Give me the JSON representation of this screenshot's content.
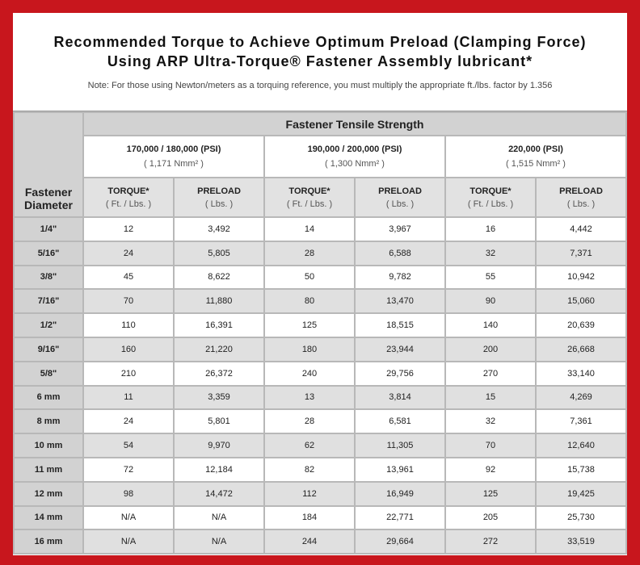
{
  "header": {
    "title": [
      "Recommended Torque to Achieve Optimum Preload (Clamping Force)",
      "Using ARP Ultra-Torque® Fastener Assembly lubricant*"
    ],
    "note": "Note: For those using Newton/meters as a torquing reference, you must multiply the appropriate ft./lbs. factor by 1.356"
  },
  "table": {
    "row_header": "Fastener Diameter",
    "group_header": "Fastener Tensile Strength",
    "groups": [
      {
        "label": "170,000 / 180,000 (PSI)",
        "sub": "( 1,171 Nmm² )"
      },
      {
        "label": "190,000 / 200,000 (PSI)",
        "sub": "( 1,300 Nmm² )"
      },
      {
        "label": "220,000 (PSI)",
        "sub": "( 1,515 Nmm² )"
      }
    ],
    "columns": [
      {
        "label": "TORQUE*",
        "unit": "( Ft. / Lbs. )"
      },
      {
        "label": "PRELOAD",
        "unit": "( Lbs. )"
      },
      {
        "label": "TORQUE*",
        "unit": "( Ft. / Lbs. )"
      },
      {
        "label": "PRELOAD",
        "unit": "( Lbs. )"
      },
      {
        "label": "TORQUE*",
        "unit": "( Ft. / Lbs. )"
      },
      {
        "label": "PRELOAD",
        "unit": "( Lbs. )"
      }
    ],
    "rows": [
      [
        "1/4\"",
        "12",
        "3,492",
        "14",
        "3,967",
        "16",
        "4,442"
      ],
      [
        "5/16\"",
        "24",
        "5,805",
        "28",
        "6,588",
        "32",
        "7,371"
      ],
      [
        "3/8\"",
        "45",
        "8,622",
        "50",
        "9,782",
        "55",
        "10,942"
      ],
      [
        "7/16\"",
        "70",
        "11,880",
        "80",
        "13,470",
        "90",
        "15,060"
      ],
      [
        "1/2\"",
        "110",
        "16,391",
        "125",
        "18,515",
        "140",
        "20,639"
      ],
      [
        "9/16\"",
        "160",
        "21,220",
        "180",
        "23,944",
        "200",
        "26,668"
      ],
      [
        "5/8\"",
        "210",
        "26,372",
        "240",
        "29,756",
        "270",
        "33,140"
      ],
      [
        "6 mm",
        "11",
        "3,359",
        "13",
        "3,814",
        "15",
        "4,269"
      ],
      [
        "8 mm",
        "24",
        "5,801",
        "28",
        "6,581",
        "32",
        "7,361"
      ],
      [
        "10 mm",
        "54",
        "9,970",
        "62",
        "11,305",
        "70",
        "12,640"
      ],
      [
        "11 mm",
        "72",
        "12,184",
        "82",
        "13,961",
        "92",
        "15,738"
      ],
      [
        "12 mm",
        "98",
        "14,472",
        "112",
        "16,949",
        "125",
        "19,425"
      ],
      [
        "14 mm",
        "N/A",
        "N/A",
        "184",
        "22,771",
        "205",
        "25,730"
      ],
      [
        "16 mm",
        "N/A",
        "N/A",
        "244",
        "29,664",
        "272",
        "33,519"
      ]
    ]
  }
}
